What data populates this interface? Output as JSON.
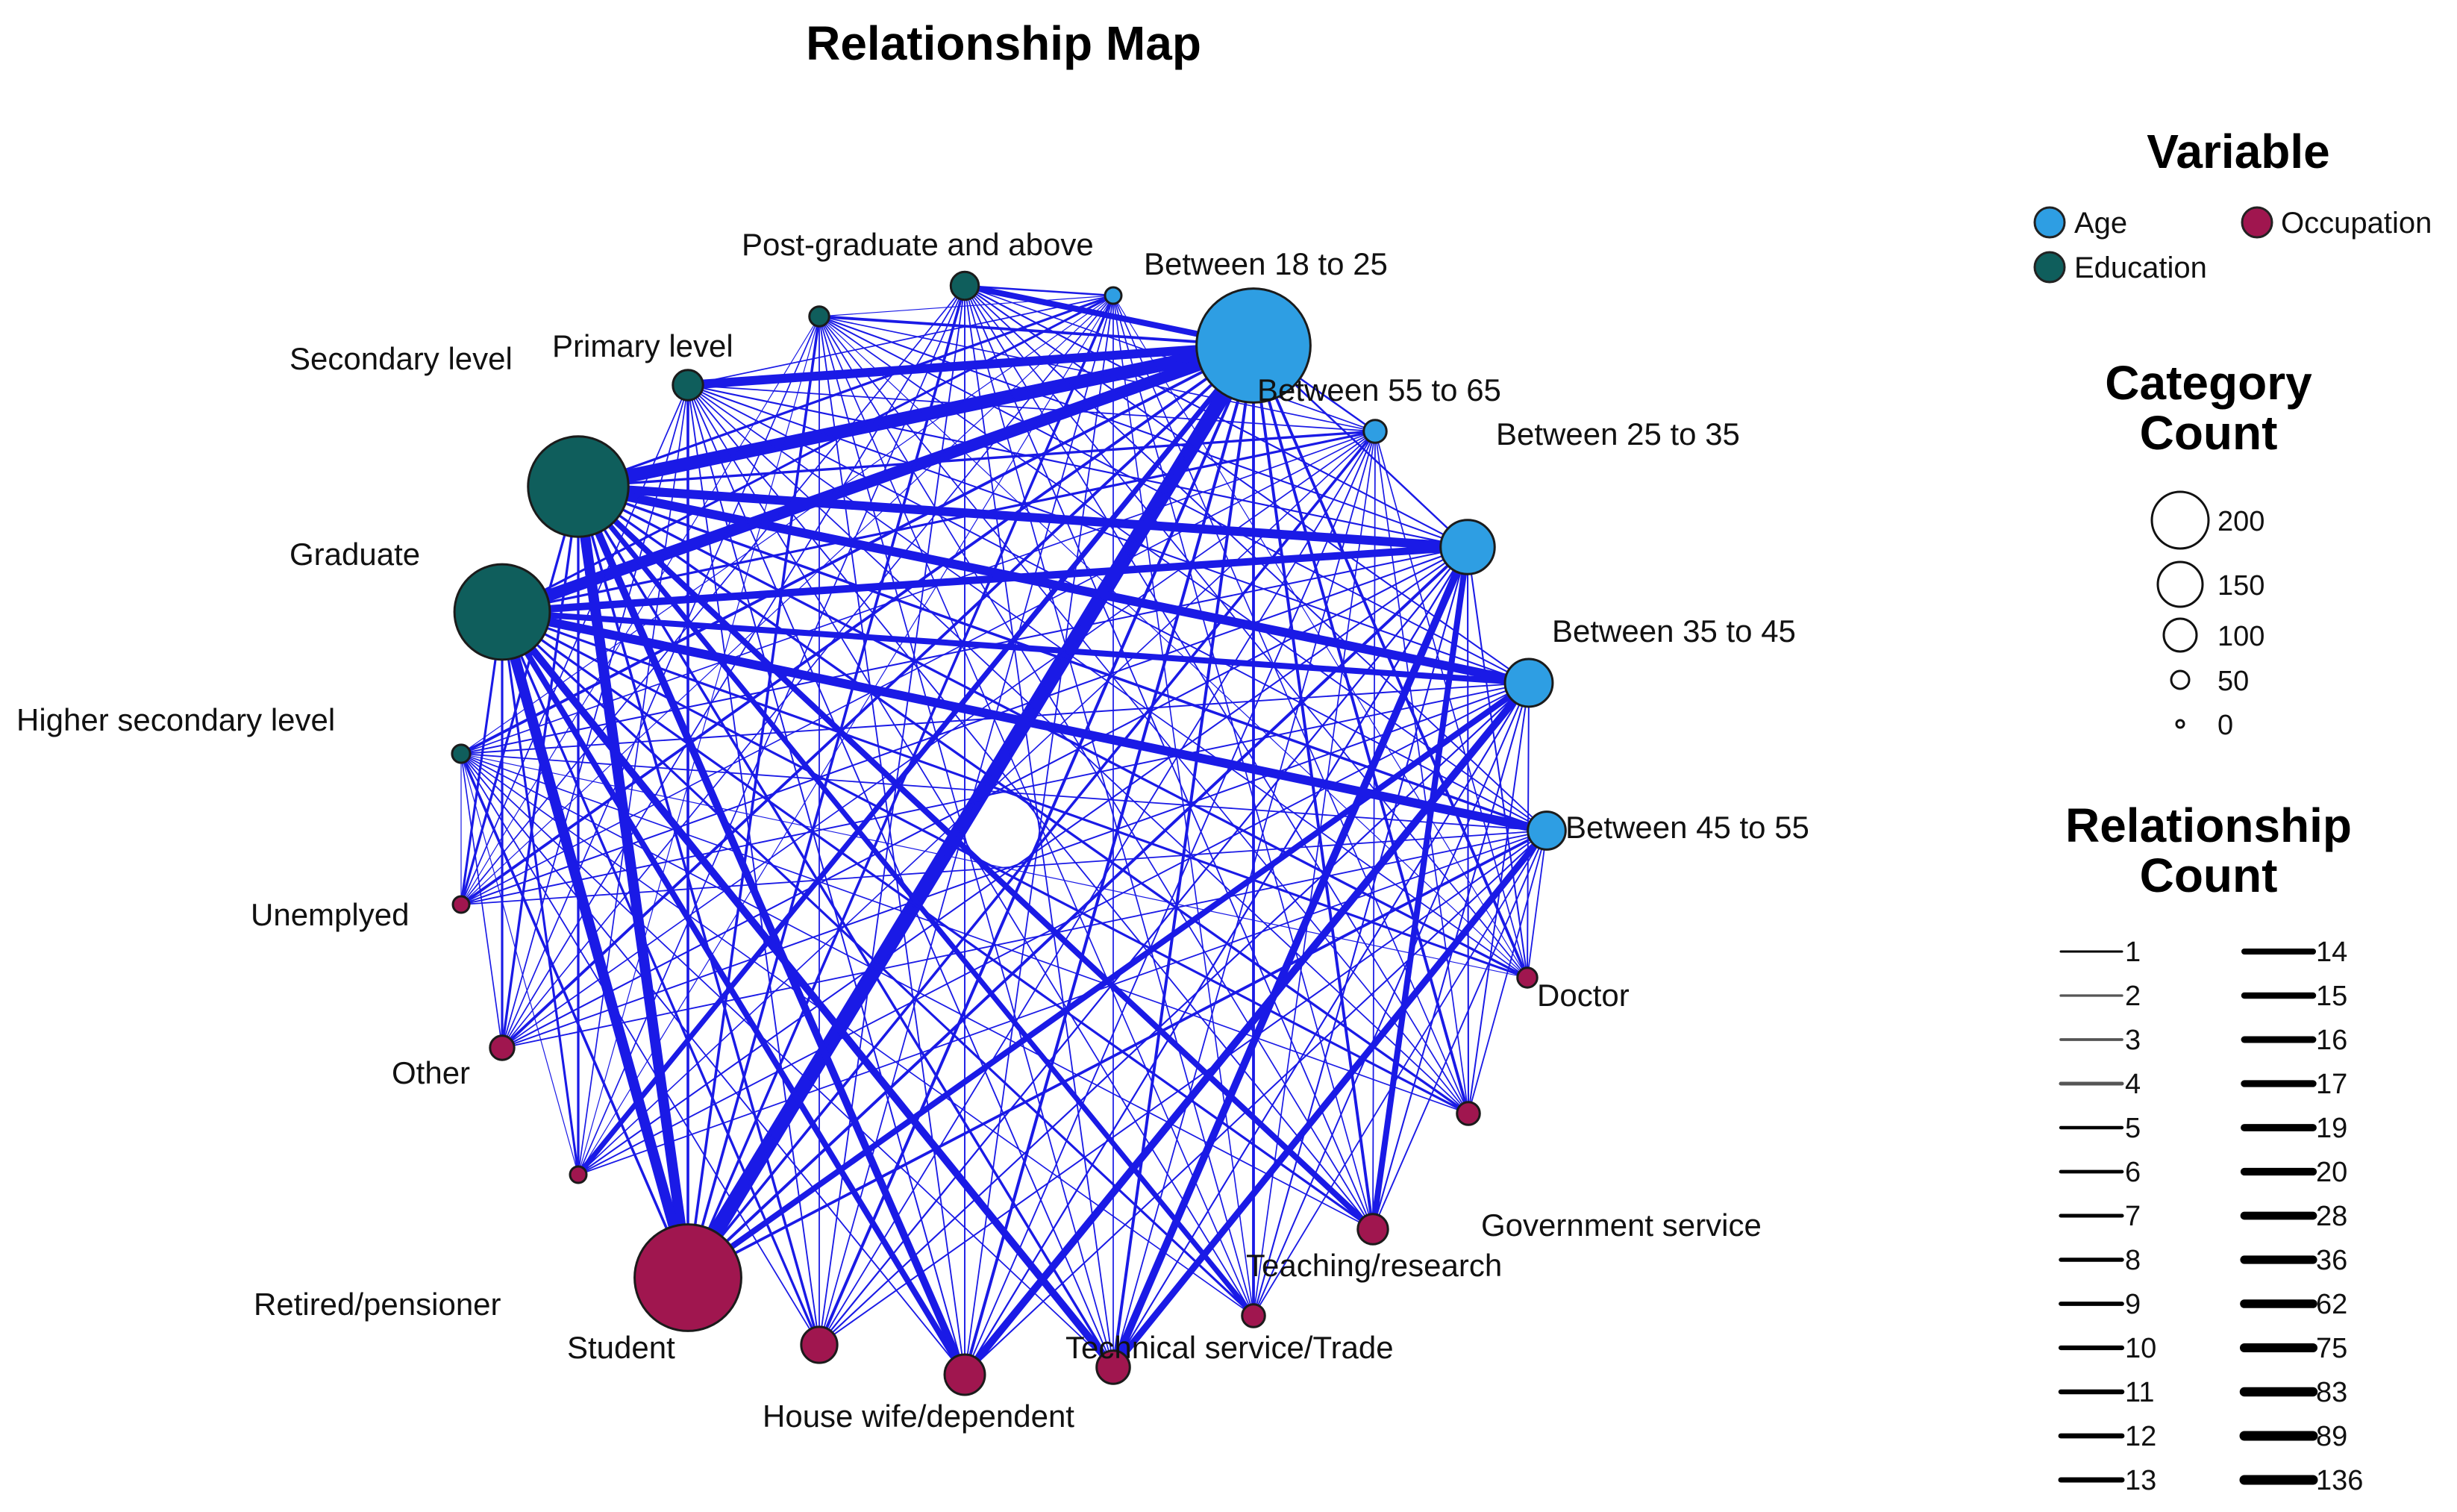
{
  "title": "Relationship Map",
  "colors": {
    "age": "#2e9ee3",
    "education": "#0f5e5c",
    "occupation": "#a0164f",
    "edge": "#1a1ae6"
  },
  "legend": {
    "variable_heading": "Variable",
    "variables": [
      {
        "name": "Age",
        "group": "age"
      },
      {
        "name": "Occupation",
        "group": "occupation"
      },
      {
        "name": "Education",
        "group": "education"
      }
    ],
    "category_heading_line1": "Category",
    "category_heading_line2": "Count",
    "category_counts": [
      "200",
      "150",
      "100",
      "50",
      "0"
    ],
    "relationship_heading_line1": "Relationship",
    "relationship_heading_line2": "Count",
    "relationship_counts_left": [
      "1",
      "2",
      "3",
      "4",
      "5",
      "6",
      "7",
      "8",
      "9",
      "10",
      "11",
      "12",
      "13"
    ],
    "relationship_counts_right": [
      "14",
      "15",
      "16",
      "17",
      "19",
      "20",
      "28",
      "36",
      "62",
      "75",
      "83",
      "89",
      "136"
    ]
  },
  "nodes": [
    {
      "id": "n18_25",
      "label": "Between 18 to 25",
      "group": "age",
      "size": 200
    },
    {
      "id": "n55_65",
      "label": "Between 55 to 65",
      "group": "age",
      "size": 8
    },
    {
      "id": "n25_35",
      "label": "Between 25 to 35",
      "group": "age",
      "size": 45
    },
    {
      "id": "n35_45",
      "label": "Between 35 to 45",
      "group": "age",
      "size": 35
    },
    {
      "id": "n45_55",
      "label": "Between 45 to 55",
      "group": "age",
      "size": 22
    },
    {
      "id": "n_unk_age",
      "label": "",
      "group": "age",
      "size": 2
    },
    {
      "id": "postgrad",
      "label": "Post-graduate and above",
      "group": "education",
      "size": 12
    },
    {
      "id": "primary",
      "label": "Primary level",
      "group": "education",
      "size": 6
    },
    {
      "id": "secondary",
      "label": "Secondary level",
      "group": "education",
      "size": 14
    },
    {
      "id": "graduate",
      "label": "Graduate",
      "group": "education",
      "size": 155
    },
    {
      "id": "highersec",
      "label": "Higher secondary level",
      "group": "education",
      "size": 140
    },
    {
      "id": "n_unk_edu",
      "label": "",
      "group": "education",
      "size": 5
    },
    {
      "id": "doctor",
      "label": "Doctor",
      "group": "occupation",
      "size": 6
    },
    {
      "id": "n_unk_occ1",
      "label": "",
      "group": "occupation",
      "size": 8
    },
    {
      "id": "government",
      "label": "Government service",
      "group": "occupation",
      "size": 14
    },
    {
      "id": "teaching",
      "label": "Teaching/research",
      "group": "occupation",
      "size": 8
    },
    {
      "id": "technical",
      "label": "Technical service/Trade",
      "group": "occupation",
      "size": 17
    },
    {
      "id": "housewife",
      "label": "House wife/dependent",
      "group": "occupation",
      "size": 25
    },
    {
      "id": "retired",
      "label": "Retired/pensioner",
      "group": "occupation",
      "size": 20
    },
    {
      "id": "student",
      "label": "Student",
      "group": "occupation",
      "size": 175
    },
    {
      "id": "n_unk_occ2",
      "label": "",
      "group": "occupation",
      "size": 3
    },
    {
      "id": "other",
      "label": "Other",
      "group": "occupation",
      "size": 9
    },
    {
      "id": "unemployed",
      "label": "Unemplyed",
      "group": "occupation",
      "size": 4
    }
  ]
}
